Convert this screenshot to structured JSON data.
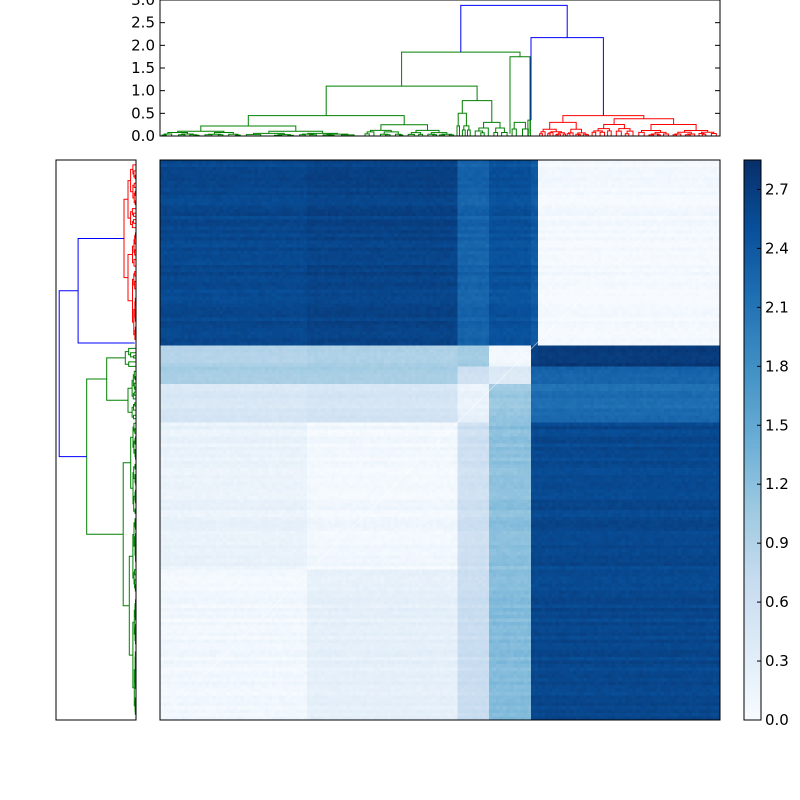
{
  "chart_data": [
    {
      "type": "dendrogram",
      "orientation": "top",
      "ylim": [
        0,
        3.0
      ],
      "y_ticks": [
        "0.0",
        "0.5",
        "1.0",
        "1.5",
        "2.0",
        "2.5",
        "3.0"
      ],
      "link_colors": [
        "#0000ff",
        "#008000",
        "#ff0000"
      ],
      "clusters": [
        {
          "name": "",
          "color": "#008000",
          "merge_height": 1.85
        },
        {
          "name": "",
          "color": "#ff0000",
          "merge_height": 0.45
        }
      ],
      "root_merge_height": 2.88,
      "blue_link_height": 2.17
    },
    {
      "type": "dendrogram",
      "orientation": "left",
      "link_colors": [
        "#0000ff",
        "#008000",
        "#ff0000"
      ]
    },
    {
      "type": "heatmap",
      "colormap": "Blues",
      "colorbar": {
        "min": 0.0,
        "max": 2.85,
        "ticks": [
          "0.0",
          "0.3",
          "0.6",
          "0.9",
          "1.2",
          "1.5",
          "1.8",
          "2.1",
          "2.4",
          "2.7"
        ]
      },
      "row_boundaries": [
        0,
        0.33,
        0.37,
        0.4,
        0.47,
        0.73,
        1.0
      ],
      "col_boundaries": [
        0,
        0.26,
        0.53,
        0.59,
        0.66,
        0.675,
        1.0
      ],
      "block_values": [
        [
          2.6,
          2.65,
          2.3,
          2.5,
          2.4,
          0.05
        ],
        [
          0.9,
          0.95,
          1.05,
          0.1,
          2.7,
          2.75
        ],
        [
          1.0,
          1.0,
          0.6,
          0.4,
          2.3,
          2.3
        ],
        [
          0.45,
          0.5,
          0.2,
          1.1,
          2.2,
          2.2
        ],
        [
          0.2,
          0.08,
          0.6,
          1.2,
          2.6,
          2.6
        ],
        [
          0.08,
          0.25,
          0.65,
          1.25,
          2.6,
          2.6
        ]
      ]
    }
  ]
}
